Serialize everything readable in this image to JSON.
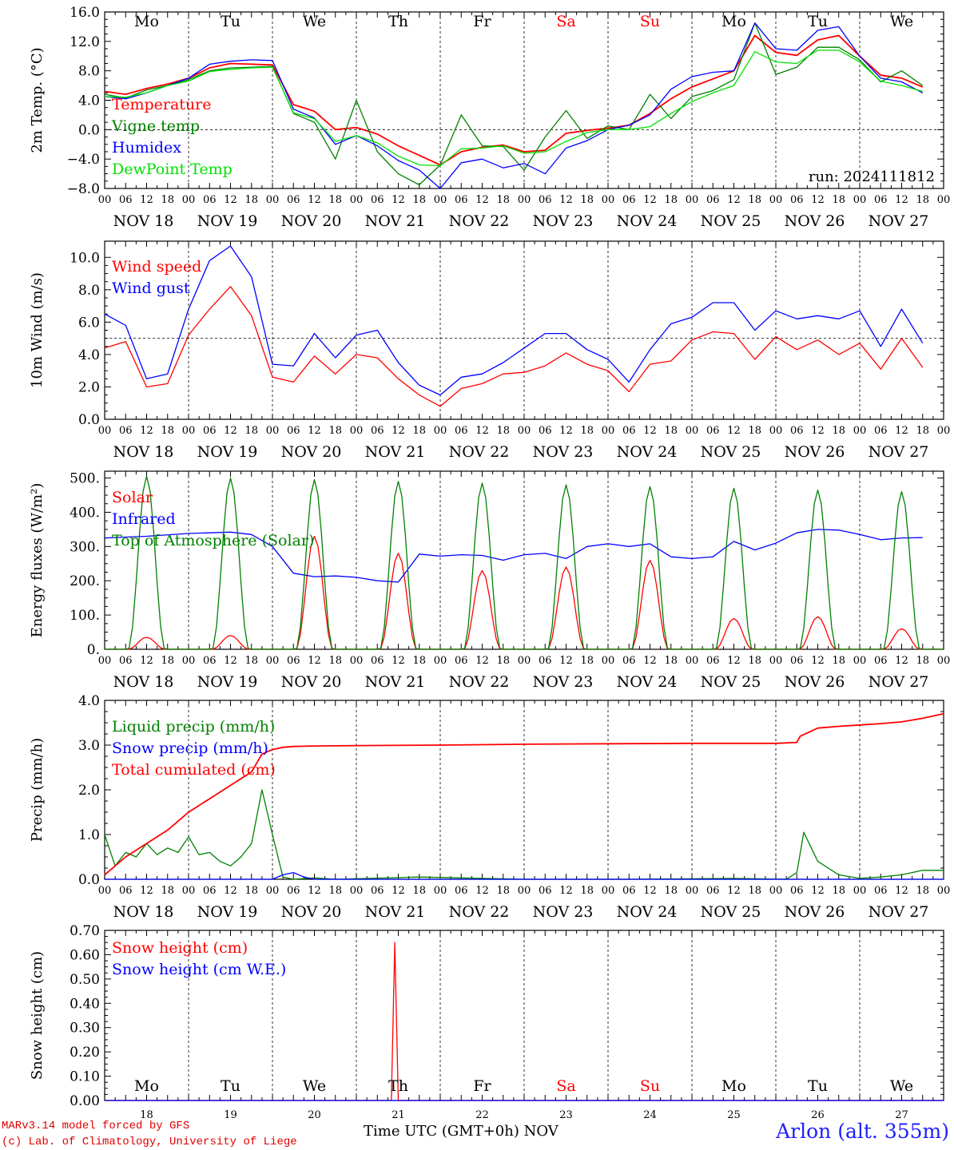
{
  "footer": {
    "model": "MARv3.14 model forced by GFS",
    "credit": "(c) Lab. of Climatology, University of Liege",
    "xtitle": "Time UTC (GMT+0h)",
    "month": "NOV",
    "station": "Arlon (alt. 355m)"
  },
  "day_names": [
    "Mo",
    "Tu",
    "We",
    "Th",
    "Fr",
    "Sa",
    "Su",
    "Mo",
    "Tu",
    "We"
  ],
  "day_name_colors": [
    "#000000",
    "#000000",
    "#000000",
    "#000000",
    "#000000",
    "#ff0000",
    "#ff0000",
    "#000000",
    "#000000",
    "#000000"
  ],
  "date_labels": [
    "NOV 18",
    "NOV 19",
    "NOV 20",
    "NOV 21",
    "NOV 22",
    "NOV 23",
    "NOV 24",
    "NOV 25",
    "NOV 26",
    "NOV 27"
  ],
  "day_numbers": [
    "18",
    "19",
    "20",
    "21",
    "22",
    "23",
    "24",
    "25",
    "26",
    "27"
  ],
  "hour_labels": [
    "00",
    "06",
    "12",
    "18"
  ],
  "chart_data": [
    {
      "id": "temp",
      "type": "line",
      "ylabel": "2m Temp. (°C)",
      "ylim": [
        -8,
        16
      ],
      "yticks": [
        -8,
        -4,
        0,
        4,
        8,
        12,
        16
      ],
      "ytick_labels": [
        "−8.0",
        "−4.0",
        "0.0",
        "4.0",
        "8.0",
        "12.0",
        "16.0"
      ],
      "ref_line": 0,
      "annotation": "run: 2024111812",
      "x_unit": "hours since NOV 18 00 UTC",
      "series": [
        {
          "name": "Temperature",
          "color": "#ff0000",
          "x": [
            0,
            6,
            12,
            18,
            24,
            30,
            36,
            42,
            48,
            54,
            60,
            66,
            72,
            78,
            84,
            90,
            96,
            102,
            108,
            114,
            120,
            126,
            132,
            138,
            144,
            150,
            156,
            162,
            168,
            174,
            180,
            186,
            192,
            198,
            204,
            210,
            216,
            222,
            228,
            234
          ],
          "values": [
            5.2,
            4.8,
            5.6,
            6.2,
            7.0,
            8.4,
            9.0,
            8.9,
            8.8,
            3.4,
            2.5,
            0.0,
            0.3,
            -0.6,
            -2.2,
            -3.5,
            -4.8,
            -3.0,
            -2.4,
            -2.1,
            -3.0,
            -2.8,
            -0.5,
            -0.1,
            0.2,
            0.6,
            2.2,
            4.2,
            5.8,
            6.9,
            8.0,
            12.8,
            10.5,
            10.1,
            12.2,
            12.8,
            10.0,
            7.4,
            7.0,
            5.8
          ]
        },
        {
          "name": "Vigne temp",
          "color": "#008000",
          "x": [
            0,
            6,
            12,
            18,
            24,
            30,
            36,
            42,
            48,
            54,
            60,
            66,
            72,
            78,
            84,
            90,
            96,
            102,
            108,
            114,
            120,
            126,
            132,
            138,
            144,
            150,
            156,
            162,
            168,
            174,
            180,
            186,
            192,
            198,
            204,
            210,
            216,
            222,
            228,
            234
          ],
          "values": [
            4.8,
            4.3,
            5.4,
            6.0,
            6.8,
            8.0,
            8.4,
            8.5,
            8.6,
            2.2,
            1.0,
            -4.0,
            4.0,
            -3.0,
            -6.0,
            -7.5,
            -4.8,
            2.0,
            -2.2,
            -2.3,
            -5.5,
            -1.0,
            2.6,
            -1.2,
            0.5,
            0.0,
            4.8,
            1.5,
            4.5,
            5.3,
            6.8,
            14.5,
            7.5,
            8.5,
            11.2,
            11.2,
            9.5,
            6.5,
            8.0,
            6.0
          ]
        },
        {
          "name": "Humidex",
          "color": "#0000ff",
          "x": [
            0,
            6,
            12,
            18,
            24,
            30,
            36,
            42,
            48,
            54,
            60,
            66,
            72,
            78,
            84,
            90,
            96,
            102,
            108,
            114,
            120,
            126,
            132,
            138,
            144,
            150,
            156,
            162,
            168,
            174,
            180,
            186,
            192,
            198,
            204,
            210,
            216,
            222,
            228,
            234
          ],
          "values": [
            4.5,
            4.2,
            5.0,
            6.0,
            7.0,
            8.9,
            9.3,
            9.5,
            9.4,
            2.8,
            1.6,
            -2.0,
            -0.8,
            -2.2,
            -4.2,
            -5.5,
            -8.0,
            -4.5,
            -4.0,
            -5.2,
            -4.6,
            -6.0,
            -2.5,
            -1.5,
            0.0,
            0.6,
            2.0,
            5.5,
            7.2,
            7.8,
            8.0,
            14.5,
            11.0,
            10.8,
            13.5,
            14.0,
            10.0,
            7.0,
            6.5,
            5.0
          ]
        },
        {
          "name": "DewPoint Temp",
          "color": "#00e000",
          "x": [
            0,
            6,
            12,
            18,
            24,
            30,
            36,
            42,
            48,
            54,
            60,
            66,
            72,
            78,
            84,
            90,
            96,
            102,
            108,
            114,
            120,
            126,
            132,
            138,
            144,
            150,
            156,
            162,
            168,
            174,
            180,
            186,
            192,
            198,
            204,
            210,
            216,
            222,
            228,
            234
          ],
          "values": [
            4.5,
            4.4,
            5.0,
            6.0,
            6.6,
            7.9,
            8.2,
            8.4,
            8.5,
            2.3,
            1.5,
            -1.6,
            -0.8,
            -1.8,
            -3.6,
            -4.8,
            -4.9,
            -2.6,
            -2.5,
            -2.2,
            -3.2,
            -3.0,
            -1.6,
            -0.4,
            0.0,
            0.0,
            0.4,
            2.2,
            3.8,
            5.0,
            6.0,
            10.6,
            9.2,
            9.0,
            10.8,
            10.8,
            9.2,
            6.6,
            6.0,
            5.2
          ]
        }
      ]
    },
    {
      "id": "wind",
      "type": "line",
      "ylabel": "10m Wind (m/s)",
      "ylim": [
        0,
        11
      ],
      "yticks": [
        0,
        2,
        4,
        6,
        8,
        10
      ],
      "ytick_labels": [
        "0.0",
        "2.0",
        "4.0",
        "6.0",
        "8.0",
        "10.0"
      ],
      "ref_line": 5,
      "x_unit": "hours since NOV 18 00 UTC",
      "series": [
        {
          "name": "Wind speed",
          "color": "#ff0000",
          "x": [
            0,
            6,
            12,
            18,
            24,
            30,
            36,
            42,
            48,
            54,
            60,
            66,
            72,
            78,
            84,
            90,
            96,
            102,
            108,
            114,
            120,
            126,
            132,
            138,
            144,
            150,
            156,
            162,
            168,
            174,
            180,
            186,
            192,
            198,
            204,
            210,
            216,
            222,
            228,
            234
          ],
          "values": [
            4.4,
            4.8,
            2.0,
            2.2,
            5.2,
            6.8,
            8.2,
            6.4,
            2.6,
            2.3,
            3.9,
            2.8,
            4.0,
            3.8,
            2.5,
            1.5,
            0.8,
            1.9,
            2.2,
            2.8,
            2.9,
            3.3,
            4.1,
            3.4,
            3.0,
            1.7,
            3.4,
            3.6,
            4.9,
            5.4,
            5.3,
            3.7,
            5.1,
            4.3,
            4.9,
            4.0,
            4.7,
            3.1,
            5.0,
            3.2
          ]
        },
        {
          "name": "Wind gust",
          "color": "#0000ff",
          "x": [
            0,
            6,
            12,
            18,
            24,
            30,
            36,
            42,
            48,
            54,
            60,
            66,
            72,
            78,
            84,
            90,
            96,
            102,
            108,
            114,
            120,
            126,
            132,
            138,
            144,
            150,
            156,
            162,
            168,
            174,
            180,
            186,
            192,
            198,
            204,
            210,
            216,
            222,
            228,
            234
          ],
          "values": [
            6.5,
            5.8,
            2.5,
            2.8,
            6.8,
            9.8,
            10.7,
            8.8,
            3.4,
            3.3,
            5.3,
            3.8,
            5.2,
            5.5,
            3.5,
            2.1,
            1.5,
            2.6,
            2.8,
            3.5,
            4.4,
            5.3,
            5.3,
            4.3,
            3.7,
            2.3,
            4.3,
            5.9,
            6.3,
            7.2,
            7.2,
            5.5,
            6.7,
            6.2,
            6.4,
            6.2,
            6.7,
            4.5,
            6.8,
            4.7
          ]
        }
      ]
    },
    {
      "id": "energy",
      "type": "line",
      "ylabel": "Energy fluxes (W/m²)",
      "ylim": [
        0,
        520
      ],
      "yticks": [
        0,
        100,
        200,
        300,
        400,
        500
      ],
      "ytick_labels": [
        "0.",
        "100.",
        "200.",
        "300.",
        "400.",
        "500."
      ],
      "x_unit": "hours since NOV 18 00 UTC",
      "series": [
        {
          "name": "Solar",
          "color": "#ff0000",
          "day_peak_hour": 12,
          "day_half_width_hours": 5,
          "daily_peaks": [
            35,
            40,
            330,
            280,
            230,
            240,
            260,
            90,
            95,
            60
          ]
        },
        {
          "name": "Infrared",
          "color": "#0000ff",
          "x": [
            0,
            12,
            24,
            36,
            42,
            48,
            54,
            60,
            66,
            72,
            78,
            84,
            90,
            96,
            102,
            108,
            114,
            120,
            126,
            132,
            138,
            144,
            150,
            156,
            162,
            168,
            174,
            180,
            186,
            192,
            198,
            204,
            210,
            216,
            222,
            228,
            234
          ],
          "values": [
            325,
            330,
            338,
            342,
            335,
            300,
            222,
            212,
            214,
            210,
            200,
            196,
            278,
            272,
            276,
            274,
            260,
            276,
            280,
            265,
            300,
            308,
            300,
            308,
            270,
            265,
            270,
            315,
            290,
            310,
            340,
            350,
            348,
            335,
            320,
            325,
            326
          ]
        },
        {
          "name": "Top of Atmosphere (Solar)",
          "color": "#008000",
          "day_peak_hour": 12,
          "day_half_width_hours": 5,
          "daily_peaks": [
            505,
            500,
            495,
            490,
            485,
            480,
            475,
            470,
            465,
            460
          ]
        }
      ]
    },
    {
      "id": "precip",
      "type": "line",
      "ylabel": "Precip (mm/h)",
      "ylim": [
        0,
        4
      ],
      "yticks": [
        0,
        1,
        2,
        3,
        4
      ],
      "ytick_labels": [
        "0.0",
        "1.0",
        "2.0",
        "3.0",
        "4.0"
      ],
      "x_unit": "hours since NOV 18 00 UTC",
      "series": [
        {
          "name": "Liquid precip (mm/h)",
          "color": "#008000",
          "x": [
            0,
            3,
            6,
            9,
            12,
            15,
            18,
            21,
            24,
            27,
            30,
            33,
            36,
            39,
            42,
            45,
            48,
            51,
            54,
            60,
            66,
            90,
            120,
            150,
            180,
            195,
            198,
            200,
            204,
            210,
            216,
            222,
            228,
            231,
            234,
            240
          ],
          "values": [
            1.0,
            0.3,
            0.6,
            0.5,
            0.8,
            0.55,
            0.7,
            0.6,
            0.95,
            0.55,
            0.6,
            0.4,
            0.3,
            0.5,
            0.8,
            2.0,
            1.0,
            0.05,
            0.0,
            0.03,
            0.0,
            0.05,
            0.0,
            0.0,
            0.02,
            0.0,
            0.15,
            1.05,
            0.4,
            0.1,
            0.02,
            0.05,
            0.1,
            0.15,
            0.2,
            0.2
          ]
        },
        {
          "name": "Snow precip (mm/h)",
          "color": "#0000ff",
          "x": [
            0,
            48,
            51,
            54,
            57,
            60,
            240
          ],
          "values": [
            0,
            0,
            0.1,
            0.15,
            0.05,
            0,
            0
          ]
        },
        {
          "name": "Total cumulated (cm)",
          "color": "#ff0000",
          "x": [
            0,
            6,
            12,
            18,
            24,
            30,
            36,
            42,
            45,
            48,
            51,
            54,
            60,
            72,
            96,
            120,
            144,
            168,
            192,
            198,
            199,
            204,
            210,
            216,
            222,
            228,
            234,
            240
          ],
          "values": [
            0.1,
            0.5,
            0.8,
            1.1,
            1.5,
            1.8,
            2.1,
            2.4,
            2.8,
            2.9,
            2.95,
            2.97,
            2.98,
            2.99,
            3.0,
            3.02,
            3.03,
            3.04,
            3.04,
            3.06,
            3.2,
            3.38,
            3.42,
            3.45,
            3.48,
            3.52,
            3.6,
            3.7
          ]
        }
      ]
    },
    {
      "id": "snow",
      "type": "line",
      "ylabel": "Snow height (cm)",
      "ylim": [
        0,
        0.7
      ],
      "yticks": [
        0,
        0.1,
        0.2,
        0.3,
        0.4,
        0.5,
        0.6,
        0.7
      ],
      "ytick_labels": [
        "0.00",
        "0.10",
        "0.20",
        "0.30",
        "0.40",
        "0.50",
        "0.60",
        "0.70"
      ],
      "x_unit": "hours since NOV 18 00 UTC",
      "series": [
        {
          "name": "Snow height (cm)",
          "color": "#ff0000",
          "x": [
            0,
            82,
            83,
            84,
            85,
            240
          ],
          "values": [
            0,
            0,
            0.65,
            0,
            0,
            0
          ]
        },
        {
          "name": "Snow height (cm W.E.)",
          "color": "#0000ff",
          "x": [
            0,
            240
          ],
          "values": [
            0,
            0
          ]
        }
      ]
    }
  ]
}
